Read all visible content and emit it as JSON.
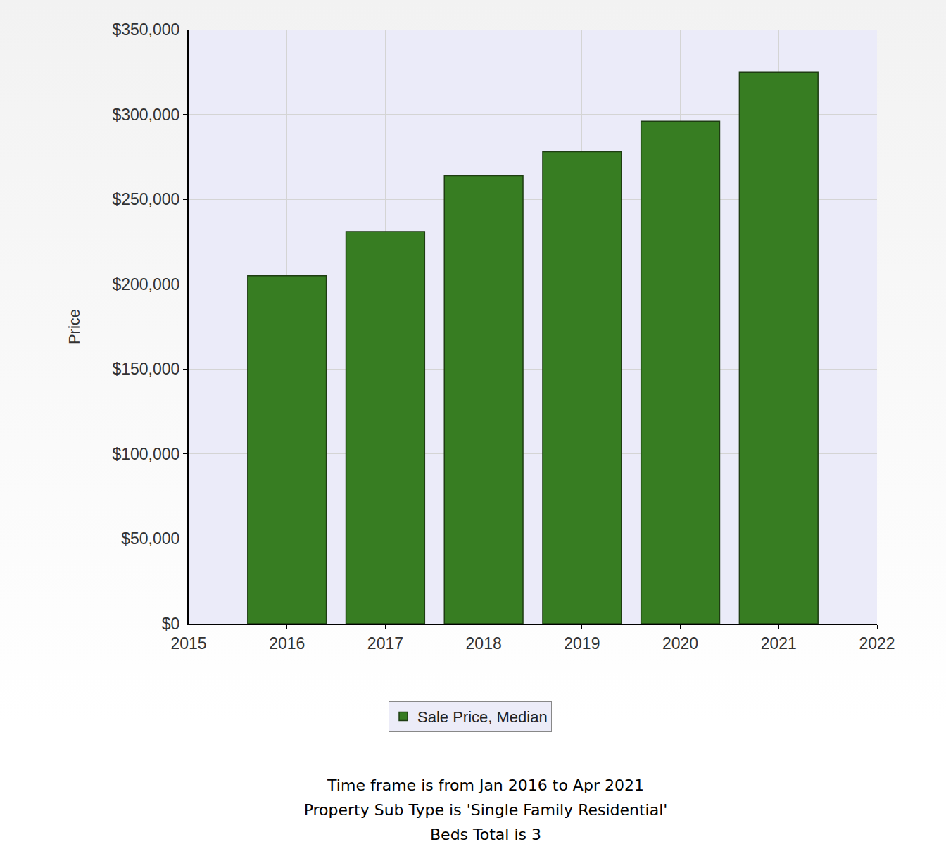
{
  "chart_data": {
    "type": "bar",
    "x": [
      2016,
      2017,
      2018,
      2019,
      2020,
      2021
    ],
    "series": [
      {
        "name": "Sale Price, Median",
        "color": "#377d22",
        "values": [
          205000,
          231000,
          264000,
          278000,
          296000,
          325000
        ]
      }
    ],
    "y_label": "Price",
    "xlim": [
      2015,
      2022
    ],
    "xticks": [
      2015,
      2016,
      2017,
      2018,
      2019,
      2020,
      2021,
      2022
    ],
    "ylim": [
      0,
      350000
    ],
    "yticks": [
      {
        "value": 0,
        "label": "$0"
      },
      {
        "value": 50000,
        "label": "$50,000"
      },
      {
        "value": 100000,
        "label": "$100,000"
      },
      {
        "value": 150000,
        "label": "$150,000"
      },
      {
        "value": 200000,
        "label": "$200,000"
      },
      {
        "value": 250000,
        "label": "$250,000"
      },
      {
        "value": 300000,
        "label": "$300,000"
      },
      {
        "value": 350000,
        "label": "$350,000"
      }
    ],
    "grid": true,
    "legend": "bottom",
    "annotations": [
      "Time frame is from Jan 2016 to Apr 2021",
      "Property Sub Type is 'Single Family Residential'",
      "Beds Total is 3"
    ]
  }
}
